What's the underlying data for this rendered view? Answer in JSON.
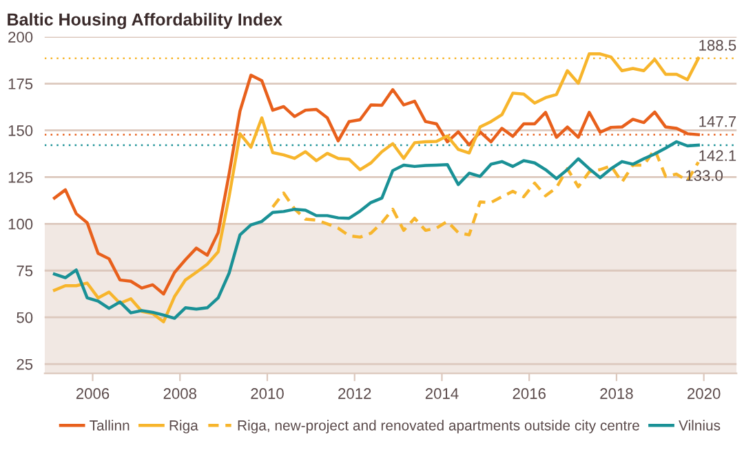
{
  "chart_data": {
    "type": "line",
    "title": "Baltic Housing Affordability Index",
    "x": [
      2005.125,
      2005.375,
      2005.625,
      2005.875,
      2006.125,
      2006.375,
      2006.625,
      2006.875,
      2007.125,
      2007.375,
      2007.625,
      2007.875,
      2008.125,
      2008.375,
      2008.625,
      2008.875,
      2009.125,
      2009.375,
      2009.625,
      2009.875,
      2010.125,
      2010.375,
      2010.625,
      2010.875,
      2011.125,
      2011.375,
      2011.625,
      2011.875,
      2012.125,
      2012.375,
      2012.625,
      2012.875,
      2013.125,
      2013.375,
      2013.625,
      2013.875,
      2014.125,
      2014.375,
      2014.625,
      2014.875,
      2015.125,
      2015.375,
      2015.625,
      2015.875,
      2016.125,
      2016.375,
      2016.625,
      2016.875,
      2017.125,
      2017.375,
      2017.625,
      2017.875,
      2018.125,
      2018.375,
      2018.625,
      2018.875,
      2019.125,
      2019.375,
      2019.625,
      2019.875
    ],
    "series": [
      {
        "name": "Tallinn",
        "color": "#e8601c",
        "values": [
          113.8,
          118.2,
          105.4,
          100.6,
          84.2,
          81.3,
          70,
          69.3,
          65.7,
          67.4,
          62.5,
          74,
          80.8,
          87,
          83.2,
          95.3,
          126.6,
          160.3,
          179.5,
          176.6,
          160.8,
          162.7,
          157.4,
          160.8,
          161.2,
          156.7,
          144.4,
          154.7,
          155.7,
          163.6,
          163.4,
          171.8,
          163.6,
          165.6,
          154.7,
          153.5,
          143.9,
          149.2,
          142.2,
          149.2,
          143.9,
          151.1,
          146.8,
          153.5,
          153.5,
          159.6,
          146.3,
          151.8,
          146.3,
          159.6,
          149,
          151.6,
          151.8,
          155.9,
          154.2,
          159.8,
          151.8,
          151.1,
          148.2,
          147.7
        ]
      },
      {
        "name": "Riga",
        "color": "#f7b52c",
        "values": [
          64.5,
          66.9,
          66.9,
          68.3,
          60.4,
          63.5,
          57.5,
          59.9,
          53.2,
          52,
          47.6,
          61.1,
          70,
          74.1,
          78.4,
          85,
          114.5,
          148.2,
          141,
          156.7,
          138.1,
          136.9,
          135,
          138.6,
          133.8,
          137.7,
          135,
          134.5,
          129,
          132.6,
          138.6,
          142.9,
          135,
          143.4,
          143.9,
          144.1,
          147,
          139.8,
          137.9,
          151.8,
          154.7,
          158.4,
          169.9,
          169.4,
          164.6,
          167.5,
          169.2,
          181.9,
          175.2,
          190.9,
          190.9,
          189.2,
          181.9,
          183.1,
          181.9,
          188,
          180,
          180,
          177.1,
          188.5
        ]
      },
      {
        "name": "Riga, new-project and renovated apartments outside city centre",
        "color": "#f7b52c",
        "line_style": "dashed",
        "x": [
          2010.125,
          2010.375,
          2010.625,
          2010.875,
          2011.125,
          2011.375,
          2011.625,
          2011.875,
          2012.125,
          2012.375,
          2012.625,
          2012.875,
          2013.125,
          2013.375,
          2013.625,
          2013.875,
          2014.125,
          2014.375,
          2014.625,
          2014.875,
          2015.125,
          2015.375,
          2015.625,
          2015.875,
          2016.125,
          2016.375,
          2016.625,
          2016.875,
          2017.125,
          2017.375,
          2017.625,
          2017.875,
          2018.125,
          2018.375,
          2018.625,
          2018.875,
          2019.125,
          2019.375,
          2019.625,
          2019.875
        ],
        "values": [
          109,
          116.5,
          108,
          102.5,
          102,
          100,
          97.7,
          93.6,
          92.9,
          95,
          100.6,
          107.8,
          96.5,
          103,
          96.5,
          97.7,
          101.3,
          95.3,
          94.1,
          111.7,
          111.4,
          114.5,
          117.4,
          114.5,
          121.8,
          115,
          119.4,
          129.5,
          119.8,
          127.8,
          129,
          131,
          122.3,
          131.4,
          131.4,
          139.8,
          125.4,
          126.6,
          123,
          133.0
        ]
      },
      {
        "name": "Vilnius",
        "color": "#1a9196",
        "values": [
          73.1,
          71.2,
          75.3,
          60.4,
          58.7,
          54.8,
          58.2,
          52.4,
          53.6,
          52.7,
          51.2,
          49.5,
          55.1,
          54.4,
          55.1,
          60.4,
          73.6,
          94.1,
          99.4,
          101.3,
          106.1,
          106.6,
          107.8,
          107.3,
          104.4,
          104.4,
          103.2,
          103,
          106.8,
          111.4,
          113.8,
          128.5,
          131.4,
          130.7,
          131.2,
          131.4,
          131.7,
          121,
          127.1,
          125.4,
          131.9,
          133.3,
          130.7,
          133.8,
          132.6,
          129,
          124.2,
          129,
          134.8,
          129.5,
          124.7,
          129.5,
          133.3,
          131.9,
          134.8,
          137.4,
          140.5,
          143.9,
          141.7,
          142.1
        ]
      }
    ],
    "xlim": [
      2004.9,
      2020.75
    ],
    "xticks": [
      2006,
      2008,
      2010,
      2012,
      2014,
      2016,
      2018,
      2020
    ],
    "ylim": [
      20,
      200
    ],
    "yticks": [
      25,
      50,
      75,
      100,
      125,
      150,
      175,
      200
    ],
    "ref_lines": [
      {
        "axis": "y",
        "value": 188.5,
        "label": "188.5",
        "color": "#f7b52c",
        "line_style": "dotted"
      },
      {
        "axis": "y",
        "value": 147.7,
        "label": "147.7",
        "color": "#e8601c",
        "line_style": "dotted"
      },
      {
        "axis": "y",
        "value": 142.1,
        "label": "142.1",
        "color": "#1a9196",
        "line_style": "dotted"
      }
    ],
    "bands": [
      {
        "axis": "y",
        "from": 20,
        "to": 100,
        "color": "#f1e8e3"
      }
    ],
    "annotations": [
      {
        "text": "133.0",
        "x": 2019.875,
        "y": 133.0
      }
    ],
    "grid": "y",
    "legend": "bottom",
    "line_style": "solid",
    "marker": "none"
  }
}
